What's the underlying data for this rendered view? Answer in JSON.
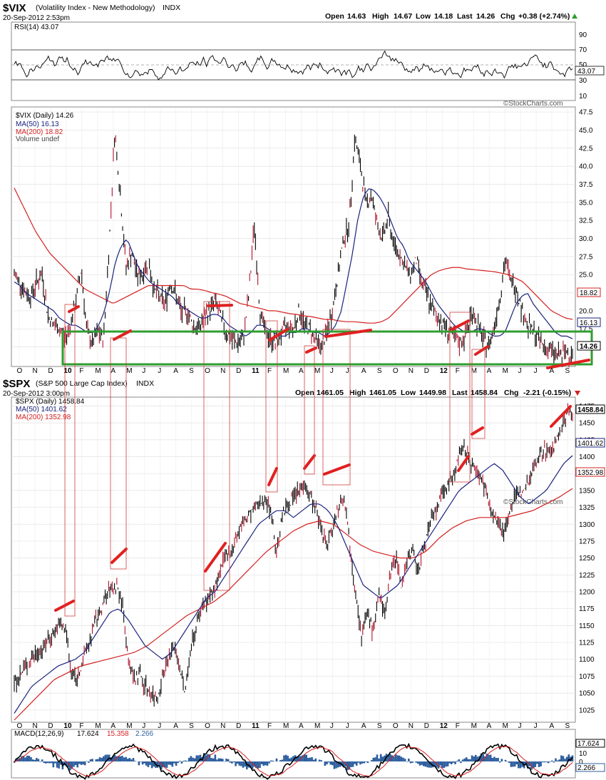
{
  "vix_header": {
    "symbol": "$VIX",
    "name": "(Volatility Index - New Methodology)",
    "exchange": "INDX",
    "timestamp": "20-Sep-2012 2:53pm",
    "quote": {
      "open": "14.63",
      "high": "14.67",
      "low": "14.18",
      "last": "14.26",
      "chg": "+0.38 (+2.74%)"
    },
    "open_label": "Open",
    "high_label": "High",
    "low_label": "Low",
    "last_label": "Last",
    "chg_label": "Chg",
    "watermark": "©StockCharts.com"
  },
  "spx_header": {
    "symbol": "$SPX",
    "name": "(S&P 500 Large Cap Index)",
    "exchange": "INDX",
    "timestamp": "20-Sep-2012 3:00pm",
    "quote": {
      "open": "1461.05",
      "high": "1461.05",
      "low": "1449.98",
      "last": "1458.84",
      "chg": "-2.21 (-0.15%)"
    },
    "open_label": "Open",
    "high_label": "High",
    "low_label": "Low",
    "last_label": "Last",
    "chg_label": "Chg",
    "watermark": "©StockCharts.com"
  },
  "rsi_panel": {
    "label": "RSI(14) 43.07",
    "current": "43.07",
    "ticks": [
      "90",
      "70",
      "50",
      "30",
      "10"
    ]
  },
  "vix_legend": {
    "line1": "$VIX (Daily) 14.26",
    "line2": "MA(50) 16.13",
    "line3": "MA(200) 18.82",
    "line4": "Volume undef"
  },
  "spx_legend": {
    "line1": "$SPX (Daily) 1458.84",
    "line2": "MA(50) 1401.62",
    "line3": "MA(200) 1352.98"
  },
  "macd_panel": {
    "label_prefix": "MACD(12,26,9)",
    "macd": "17.624",
    "signal": "15.358",
    "hist": "2.266",
    "ticks": [
      "10",
      "0"
    ]
  },
  "month_axis": [
    "O",
    "N",
    "D",
    "10",
    "F",
    "M",
    "A",
    "M",
    "J",
    "J",
    "A",
    "S",
    "O",
    "N",
    "D",
    "11",
    "F",
    "M",
    "A",
    "M",
    "J",
    "J",
    "A",
    "S",
    "O",
    "N",
    "D",
    "12",
    "F",
    "M",
    "A",
    "M",
    "J",
    "J",
    "A",
    "S"
  ],
  "colors": {
    "price": "#000000",
    "ma50": "#1a237e",
    "ma200": "#d42020",
    "annotation": "#e02020",
    "box": "#d04040",
    "support_box": "#2e9e2e",
    "macd_hist": "#2e5f9e"
  },
  "chart_data": [
    {
      "type": "line",
      "title": "$VIX (Volatility Index - New Methodology)",
      "y_ticks": [
        "47.5",
        "45.0",
        "42.5",
        "40.0",
        "37.5",
        "35.0",
        "32.5",
        "30.0",
        "27.5",
        "25.0",
        "22.5",
        "20.0",
        "17.5",
        "15.0"
      ],
      "ylim": [
        12.5,
        48
      ],
      "x_tick_labels": [
        "O",
        "N",
        "D",
        "10",
        "F",
        "M",
        "A",
        "M",
        "J",
        "J",
        "A",
        "S",
        "O",
        "N",
        "D",
        "11",
        "F",
        "M",
        "A",
        "M",
        "J",
        "J",
        "A",
        "S",
        "O",
        "N",
        "D",
        "12",
        "F",
        "M",
        "A",
        "M",
        "J",
        "J",
        "A",
        "S"
      ],
      "price_tags": [
        "18.82",
        "16.13",
        "14.26"
      ],
      "series": [
        {
          "name": "$VIX (Daily)",
          "values": [
            25,
            24,
            22.5,
            22,
            24,
            25,
            19.5,
            18,
            17.5,
            16,
            18,
            21,
            26,
            17,
            15.5,
            17,
            16,
            29,
            45,
            36,
            26,
            28,
            25,
            25,
            27,
            23,
            22,
            21,
            24,
            22,
            19.5,
            20,
            18,
            17.5,
            19,
            20,
            21.5,
            19,
            17,
            16,
            15.5,
            16,
            22,
            32,
            20,
            17,
            16,
            15.5,
            17,
            18,
            17.5,
            20,
            18,
            17.5,
            16,
            15,
            17,
            20,
            25,
            30,
            32,
            44,
            40,
            35,
            36,
            32,
            30,
            33,
            29,
            28,
            26,
            25,
            27,
            24,
            22,
            20,
            19,
            18,
            17,
            16,
            15.5,
            17,
            20,
            18,
            16,
            15,
            18,
            22,
            27,
            24,
            23,
            20,
            18,
            17,
            16,
            15,
            14.5,
            14,
            13.8,
            14.2,
            14.26
          ]
        },
        {
          "name": "MA(50)",
          "values": [
            24,
            23.5,
            22.5,
            22,
            21.5,
            21,
            20.5,
            20,
            19,
            18.5,
            18,
            18,
            17.5,
            17,
            17,
            18,
            20,
            23,
            27,
            29,
            30,
            28,
            26,
            25,
            24,
            23.5,
            23,
            22.5,
            22,
            21,
            20.5,
            20,
            19.5,
            19,
            19,
            19.5,
            19.5,
            19,
            18,
            17.5,
            17,
            16.5,
            17,
            18,
            18,
            17.5,
            17,
            16.5,
            16.5,
            17,
            17,
            17.5,
            17.5,
            17,
            17,
            16.5,
            17,
            18,
            20,
            24,
            28,
            33,
            36,
            37,
            36.5,
            35.5,
            34,
            32,
            30,
            29,
            27,
            26,
            25,
            24,
            22.5,
            21,
            20,
            19,
            18,
            17.5,
            17,
            17,
            17.5,
            17.5,
            17,
            16.5,
            16.5,
            17,
            19,
            21,
            22,
            22.5,
            21,
            20,
            19,
            18,
            17,
            16.5,
            16.5,
            16.13
          ]
        },
        {
          "name": "MA(200)",
          "values": [
            37,
            35,
            33,
            31,
            29.5,
            28,
            27,
            26,
            25,
            24,
            23,
            22.5,
            22,
            21.5,
            21,
            21.5,
            22,
            22.5,
            23,
            23.5,
            23.5,
            23.5,
            23.5,
            23.5,
            23.5,
            23,
            23,
            22.8,
            22.5,
            22.3,
            22,
            21.5,
            21,
            20.8,
            20.5,
            20.3,
            20,
            20,
            19.8,
            19.6,
            19.5,
            19.3,
            19.2,
            19,
            18.8,
            18.8,
            18.6,
            18.5,
            18.5,
            18.4,
            18.3,
            18.3,
            18.5,
            19,
            20,
            21,
            22,
            23,
            24,
            25,
            25.5,
            25.8,
            26,
            26,
            25.8,
            25.7,
            25.6,
            25.5,
            25.4,
            25.2,
            25,
            24.5,
            24,
            23,
            22,
            21,
            20,
            19.5,
            19,
            18.82
          ]
        }
      ]
    },
    {
      "type": "line",
      "title": "$SPX (S&P 500 Large Cap Index)",
      "y_ticks": [
        "1475",
        "1450",
        "1425",
        "1400",
        "1375",
        "1350",
        "1325",
        "1300",
        "1275",
        "1250",
        "1225",
        "1200",
        "1175",
        "1150",
        "1125",
        "1100",
        "1075",
        "1050",
        "1025"
      ],
      "ylim": [
        1010,
        1485
      ],
      "x_tick_labels": [
        "O",
        "N",
        "D",
        "10",
        "F",
        "M",
        "A",
        "M",
        "J",
        "J",
        "A",
        "S",
        "O",
        "N",
        "D",
        "11",
        "F",
        "M",
        "A",
        "M",
        "J",
        "J",
        "A",
        "S",
        "O",
        "N",
        "D",
        "12",
        "F",
        "M",
        "A",
        "M",
        "J",
        "J",
        "A",
        "S"
      ],
      "price_tags": [
        "1458.84",
        "1401.62",
        "1352.98"
      ],
      "series": [
        {
          "name": "$SPX (Daily)",
          "values": [
            1065,
            1075,
            1090,
            1100,
            1110,
            1115,
            1130,
            1140,
            1150,
            1145,
            1080,
            1070,
            1100,
            1120,
            1150,
            1170,
            1190,
            1205,
            1210,
            1180,
            1100,
            1070,
            1080,
            1060,
            1050,
            1040,
            1075,
            1100,
            1120,
            1090,
            1050,
            1120,
            1150,
            1180,
            1190,
            1200,
            1225,
            1250,
            1260,
            1280,
            1300,
            1310,
            1320,
            1330,
            1340,
            1320,
            1260,
            1310,
            1330,
            1340,
            1350,
            1360,
            1340,
            1320,
            1290,
            1270,
            1300,
            1330,
            1340,
            1260,
            1200,
            1130,
            1170,
            1140,
            1200,
            1160,
            1230,
            1250,
            1210,
            1250,
            1260,
            1230,
            1270,
            1300,
            1320,
            1340,
            1360,
            1370,
            1400,
            1410,
            1395,
            1380,
            1370,
            1340,
            1320,
            1300,
            1290,
            1320,
            1340,
            1350,
            1360,
            1380,
            1400,
            1410,
            1405,
            1420,
            1440,
            1465,
            1458.84
          ]
        },
        {
          "name": "MA(50)",
          "values": [
            1020,
            1040,
            1060,
            1070,
            1080,
            1090,
            1095,
            1100,
            1110,
            1130,
            1150,
            1170,
            1175,
            1160,
            1140,
            1120,
            1110,
            1100,
            1110,
            1130,
            1150,
            1170,
            1190,
            1200,
            1220,
            1240,
            1260,
            1280,
            1300,
            1310,
            1320,
            1320,
            1310,
            1320,
            1330,
            1330,
            1320,
            1300,
            1270,
            1240,
            1210,
            1200,
            1190,
            1200,
            1210,
            1230,
            1250,
            1270,
            1290,
            1310,
            1330,
            1350,
            1360,
            1370,
            1380,
            1390,
            1380,
            1360,
            1340,
            1330,
            1340,
            1350,
            1370,
            1390,
            1401.62
          ]
        },
        {
          "name": "MA(200)",
          "values": [
            1010,
            1030,
            1050,
            1070,
            1080,
            1090,
            1095,
            1100,
            1105,
            1110,
            1120,
            1135,
            1150,
            1165,
            1175,
            1185,
            1200,
            1220,
            1240,
            1260,
            1275,
            1290,
            1300,
            1305,
            1300,
            1285,
            1270,
            1260,
            1255,
            1250,
            1250,
            1260,
            1280,
            1295,
            1305,
            1310,
            1310,
            1310,
            1315,
            1320,
            1330,
            1340,
            1352.98
          ]
        }
      ]
    }
  ]
}
